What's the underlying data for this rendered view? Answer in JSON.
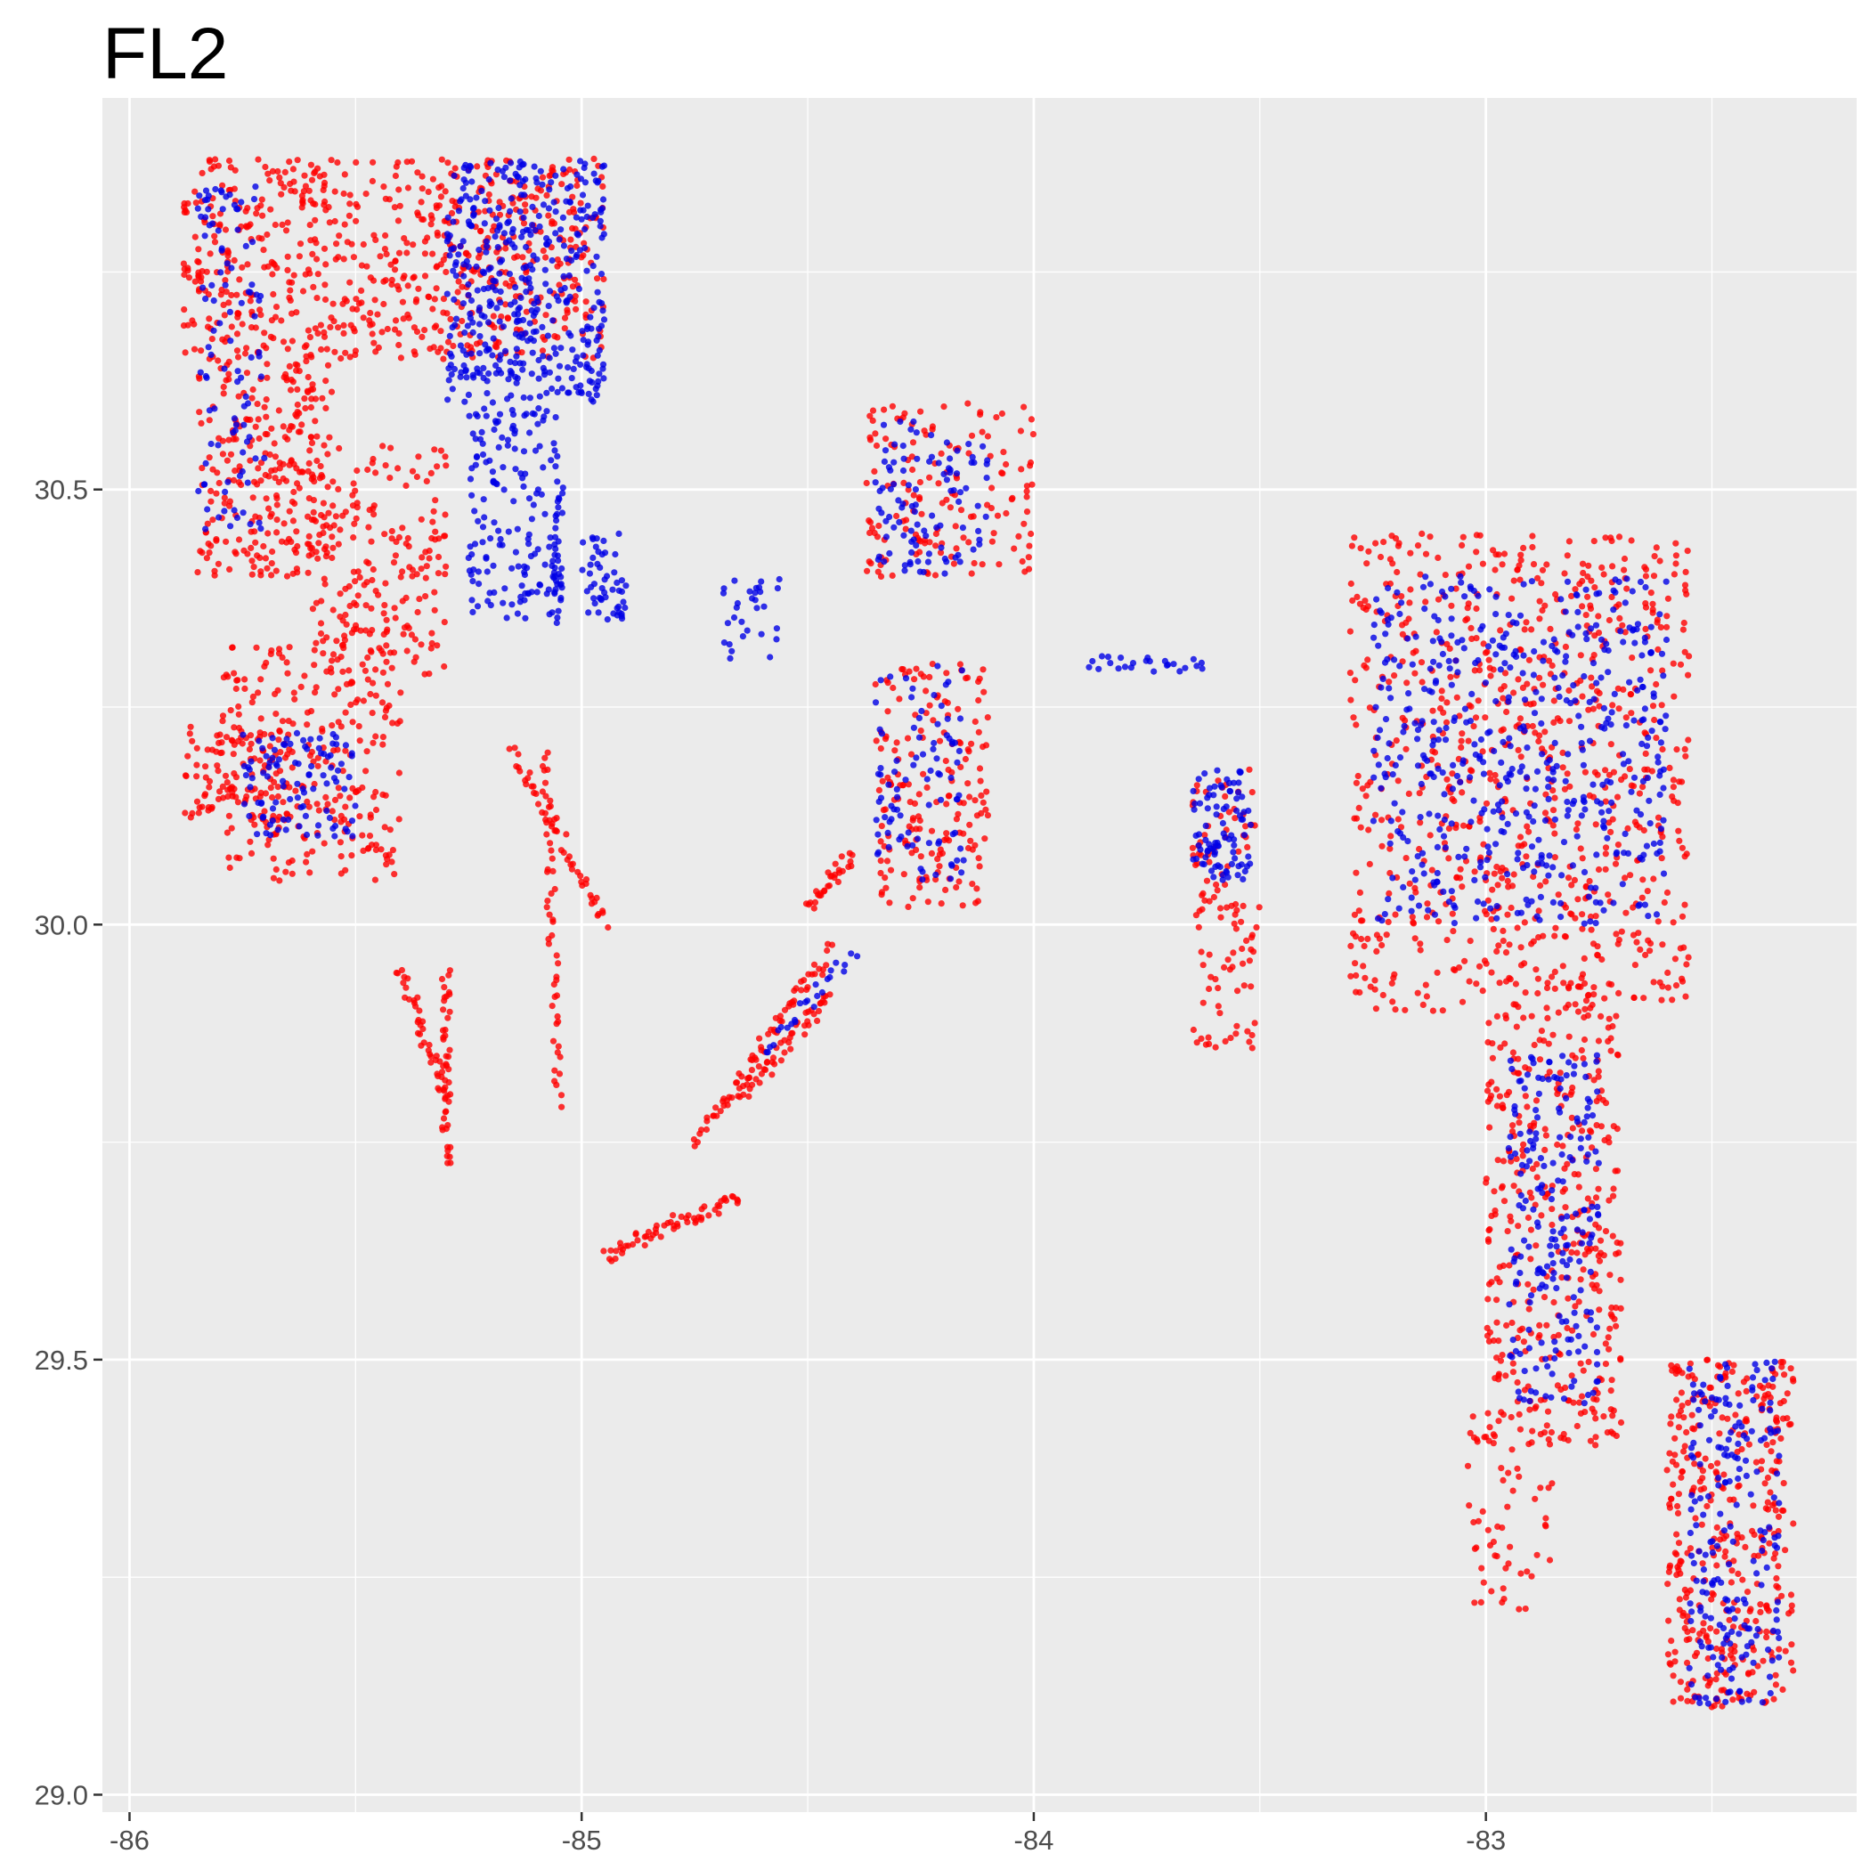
{
  "chart_data": {
    "type": "scatter",
    "title": "FL2",
    "xlabel": "",
    "ylabel": "",
    "xlim": [
      -86.06,
      -82.18
    ],
    "ylim": [
      28.98,
      30.95
    ],
    "x_ticks": [
      -86,
      -85,
      -84,
      -83
    ],
    "x_tick_labels": [
      "-86",
      "-85",
      "-84",
      "-83"
    ],
    "y_ticks": [
      29.0,
      29.5,
      30.0,
      30.5
    ],
    "y_tick_labels": [
      "29.0",
      "29.5",
      "30.0",
      "30.5"
    ],
    "grid": true,
    "colors": {
      "panel": "#EBEBEB",
      "grid": "#FFFFFF",
      "point_red": "#FF0000",
      "point_blue": "#0000E6"
    },
    "series": [
      {
        "color": "#FF0000",
        "clusters": [
          {
            "lon_min": -85.88,
            "lon_max": -84.95,
            "lat_min": 30.65,
            "lat_max": 30.88,
            "n": 700
          },
          {
            "lon_min": -85.85,
            "lon_max": -85.55,
            "lat_min": 30.4,
            "lat_max": 30.65,
            "n": 260
          },
          {
            "lon_min": -85.6,
            "lon_max": -85.3,
            "lat_min": 30.28,
            "lat_max": 30.55,
            "n": 200
          },
          {
            "lon_min": -85.8,
            "lon_max": -85.4,
            "lat_min": 30.05,
            "lat_max": 30.32,
            "n": 260
          },
          {
            "lon_min": -85.88,
            "lon_max": -85.65,
            "lat_min": 30.12,
            "lat_max": 30.23,
            "n": 90
          },
          {
            "lon_min": -84.35,
            "lon_max": -84.1,
            "lat_min": 30.02,
            "lat_max": 30.3,
            "n": 180
          },
          {
            "lon_min": -84.38,
            "lon_max": -84.0,
            "lat_min": 30.4,
            "lat_max": 30.6,
            "n": 150
          },
          {
            "lon_min": -83.65,
            "lon_max": -83.5,
            "lat_min": 29.85,
            "lat_max": 30.18,
            "n": 110
          },
          {
            "lon_min": -83.3,
            "lon_max": -82.55,
            "lat_min": 29.9,
            "lat_max": 30.45,
            "n": 800
          },
          {
            "lon_min": -83.0,
            "lon_max": -82.7,
            "lat_min": 29.4,
            "lat_max": 29.9,
            "n": 380
          },
          {
            "lon_min": -82.6,
            "lon_max": -82.32,
            "lat_min": 29.1,
            "lat_max": 29.5,
            "n": 380
          },
          {
            "lon_min": -83.05,
            "lon_max": -82.85,
            "lat_min": 29.2,
            "lat_max": 29.45,
            "n": 60
          }
        ],
        "lines": [
          {
            "from": [
              -84.95,
              29.62
            ],
            "to": [
              -84.65,
              29.69
            ],
            "n": 60
          },
          {
            "from": [
              -84.75,
              29.75
            ],
            "to": [
              -84.45,
              29.97
            ],
            "n": 70
          },
          {
            "from": [
              -84.65,
              29.8
            ],
            "to": [
              -84.45,
              29.92
            ],
            "n": 50
          },
          {
            "from": [
              -85.3,
              29.72
            ],
            "to": [
              -85.3,
              29.95
            ],
            "n": 45
          },
          {
            "from": [
              -85.08,
              30.2
            ],
            "to": [
              -85.05,
              29.8
            ],
            "n": 50
          },
          {
            "from": [
              -85.15,
              30.2
            ],
            "to": [
              -84.95,
              30.0
            ],
            "n": 50
          },
          {
            "from": [
              -85.4,
              29.95
            ],
            "to": [
              -85.3,
              29.8
            ],
            "n": 40
          },
          {
            "from": [
              -84.5,
              30.02
            ],
            "to": [
              -84.4,
              30.08
            ],
            "n": 30
          }
        ]
      },
      {
        "color": "#0000E6",
        "clusters": [
          {
            "lon_min": -85.3,
            "lon_max": -84.95,
            "lat_min": 30.6,
            "lat_max": 30.88,
            "n": 420
          },
          {
            "lon_min": -85.25,
            "lon_max": -85.05,
            "lat_min": 30.35,
            "lat_max": 30.6,
            "n": 160
          },
          {
            "lon_min": -85.85,
            "lon_max": -85.7,
            "lat_min": 30.45,
            "lat_max": 30.85,
            "n": 100
          },
          {
            "lon_min": -85.0,
            "lon_max": -84.9,
            "lat_min": 30.35,
            "lat_max": 30.45,
            "n": 50
          },
          {
            "lon_min": -84.7,
            "lon_max": -84.55,
            "lat_min": 30.3,
            "lat_max": 30.4,
            "n": 30
          },
          {
            "lon_min": -84.35,
            "lon_max": -84.1,
            "lat_min": 30.4,
            "lat_max": 30.58,
            "n": 100
          },
          {
            "lon_min": -84.35,
            "lon_max": -84.15,
            "lat_min": 30.05,
            "lat_max": 30.3,
            "n": 90
          },
          {
            "lon_min": -83.65,
            "lon_max": -83.52,
            "lat_min": 30.05,
            "lat_max": 30.18,
            "n": 90
          },
          {
            "lon_min": -83.25,
            "lon_max": -82.6,
            "lat_min": 30.0,
            "lat_max": 30.4,
            "n": 500
          },
          {
            "lon_min": -82.95,
            "lon_max": -82.75,
            "lat_min": 29.45,
            "lat_max": 29.85,
            "n": 200
          },
          {
            "lon_min": -82.55,
            "lon_max": -82.35,
            "lat_min": 29.1,
            "lat_max": 29.5,
            "n": 200
          },
          {
            "lon_min": -85.75,
            "lon_max": -85.5,
            "lat_min": 30.1,
            "lat_max": 30.22,
            "n": 100
          }
        ],
        "lines": [
          {
            "from": [
              -83.88,
              30.3
            ],
            "to": [
              -83.62,
              30.3
            ],
            "n": 25
          },
          {
            "from": [
              -84.6,
              29.85
            ],
            "to": [
              -84.4,
              29.97
            ],
            "n": 25
          },
          {
            "from": [
              -85.05,
              30.5
            ],
            "to": [
              -85.05,
              30.35
            ],
            "n": 30
          }
        ]
      }
    ]
  }
}
